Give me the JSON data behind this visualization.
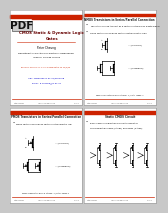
{
  "background": "#c8c8c8",
  "panel_bg": "#ffffff",
  "border_color": "#999999",
  "header_bar_color": "#cc2200",
  "text_dark": "#111111",
  "title_color": "#660000",
  "pdf_bg": "#dddddd",
  "blue_text": "#0000cc",
  "panel1": {
    "title_line1": "CMOS Static & Dynamic Logic",
    "title_line2": "Gates",
    "author": "Peter Cheung",
    "dept": "Department of Electrical & Electronic Engineering",
    "university": "Imperial College London",
    "reading": "Reading: Sedra 14.1-14.4, please get M on 24/2/09",
    "url": "URL: www.eee.ic.ac.uk/pcheung",
    "email": "Email: p.cheung@ic.ac.uk"
  },
  "panel2": {
    "title": "NMOS Transistors in Series/Parallel Connection",
    "b1": "Transistors can be thought as a switch controlled by a gate signal",
    "b2": "nMOS switch closes when switch control input is high",
    "label1": "~ (in series)",
    "label2": "~ (in parallel)",
    "caption": "NMOS Transistors pass a 'strong' 1 (note: 'weak' 1"
  },
  "panel3": {
    "title": "PMOS Transistors in Series/Parallel Connection",
    "b1": "PMOS switch closes when switch control input is low",
    "label1": "~ (in series)",
    "label2": "~ (in parallel)",
    "caption": "PMOS Transistors pass a 'strong' 1 (note: 'weak' 1"
  },
  "panel4": {
    "title": "Static CMOS Circuit",
    "b1": "Basic CMOS combinational circuits consist of",
    "b2": "complementary nMos (n-type) and pMos (p-type)"
  },
  "footer_text": "Peter Cheung",
  "footer_college": "Imperial College London"
}
